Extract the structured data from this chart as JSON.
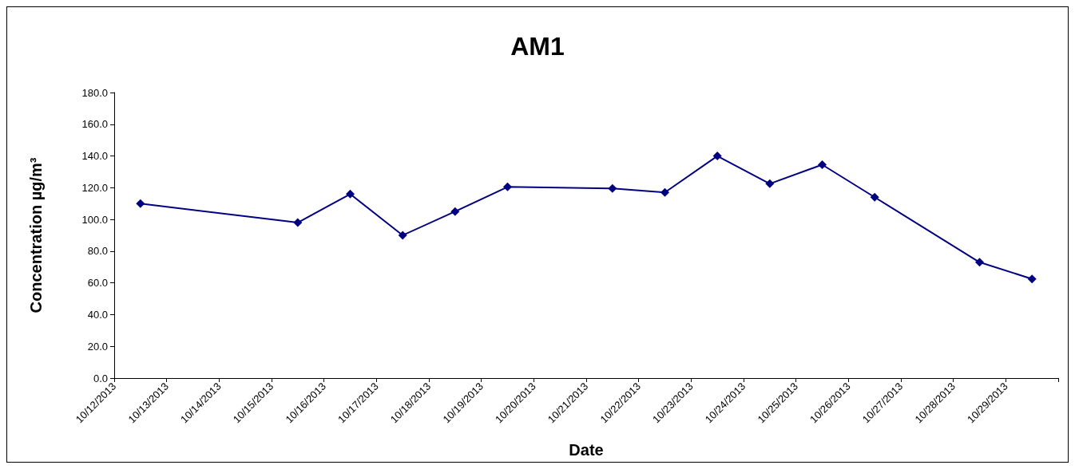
{
  "chart_data": {
    "type": "line",
    "title": "AM1",
    "xlabel": "Date",
    "ylabel": "Concentration µg/m³",
    "x": [
      "2013-10-12T12:00",
      "2013-10-15T12:00",
      "2013-10-16T12:00",
      "2013-10-17T12:00",
      "2013-10-18T12:00",
      "2013-10-19T12:00",
      "2013-10-21T12:00",
      "2013-10-22T12:00",
      "2013-10-23T12:00",
      "2013-10-24T12:00",
      "2013-10-25T12:00",
      "2013-10-26T12:00",
      "2013-10-28T12:00",
      "2013-10-29T12:00"
    ],
    "series": [
      {
        "color": "#000080",
        "values": [
          110,
          98,
          116,
          90,
          105,
          120.5,
          119.5,
          117,
          140,
          122.5,
          134.5,
          114,
          73,
          62.5
        ]
      }
    ],
    "xlim": [
      "2013-10-12",
      "2013-10-30"
    ],
    "xticks": [
      {
        "value": "2013-10-12",
        "label": "10/12/2013"
      },
      {
        "value": "2013-10-13",
        "label": "10/13/2013"
      },
      {
        "value": "2013-10-14",
        "label": "10/14/2013"
      },
      {
        "value": "2013-10-15",
        "label": "10/15/2013"
      },
      {
        "value": "2013-10-16",
        "label": "10/16/2013"
      },
      {
        "value": "2013-10-17",
        "label": "10/17/2013"
      },
      {
        "value": "2013-10-18",
        "label": "10/18/2013"
      },
      {
        "value": "2013-10-19",
        "label": "10/19/2013"
      },
      {
        "value": "2013-10-20",
        "label": "10/20/2013"
      },
      {
        "value": "2013-10-21",
        "label": "10/21/2013"
      },
      {
        "value": "2013-10-22",
        "label": "10/22/2013"
      },
      {
        "value": "2013-10-23",
        "label": "10/23/2013"
      },
      {
        "value": "2013-10-24",
        "label": "10/24/2013"
      },
      {
        "value": "2013-10-25",
        "label": "10/25/2013"
      },
      {
        "value": "2013-10-26",
        "label": "10/26/2013"
      },
      {
        "value": "2013-10-27",
        "label": "10/27/2013"
      },
      {
        "value": "2013-10-28",
        "label": "10/28/2013"
      },
      {
        "value": "2013-10-29",
        "label": "10/29/2013"
      },
      {
        "value": "2013-10-30",
        "label": null
      }
    ],
    "ylim": [
      0,
      180
    ],
    "yticks": [
      {
        "value": 0,
        "label": "0.0"
      },
      {
        "value": 20,
        "label": "20.0"
      },
      {
        "value": 40,
        "label": "40.0"
      },
      {
        "value": 60,
        "label": "60.0"
      },
      {
        "value": 80,
        "label": "80.0"
      },
      {
        "value": 100,
        "label": "100.0"
      },
      {
        "value": 120,
        "label": "120.0"
      },
      {
        "value": 140,
        "label": "140.0"
      },
      {
        "value": 160,
        "label": "160.0"
      },
      {
        "value": 180,
        "label": "180.0"
      }
    ],
    "grid": false,
    "marker": "diamond",
    "line_style": "solid"
  }
}
